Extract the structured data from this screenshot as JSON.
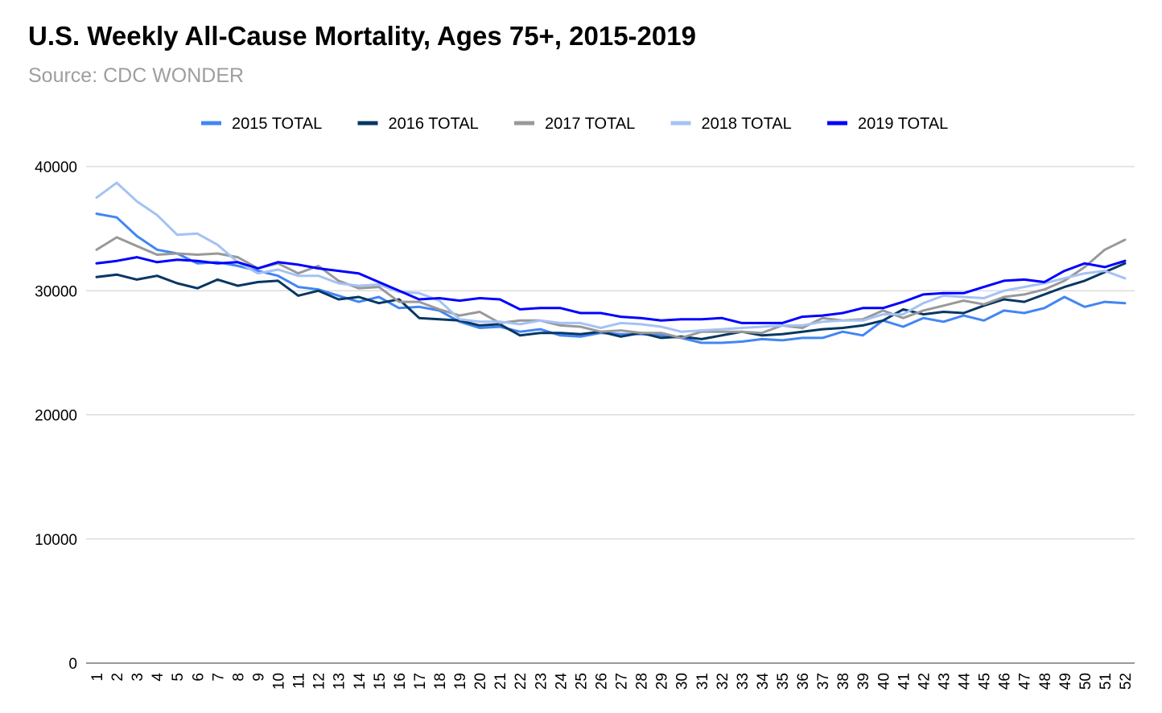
{
  "chart_data": {
    "type": "line",
    "title": "U.S. Weekly All-Cause Mortality, Ages 75+, 2015-2019",
    "subtitle": "Source: CDC WONDER",
    "xlabel": "",
    "ylabel": "",
    "ylim": [
      0,
      40000
    ],
    "yticks": [
      "0",
      "10000",
      "20000",
      "30000",
      "40000"
    ],
    "grid": true,
    "legend_position": "top",
    "x": [
      1,
      2,
      3,
      4,
      5,
      6,
      7,
      8,
      9,
      10,
      11,
      12,
      13,
      14,
      15,
      16,
      17,
      18,
      19,
      20,
      21,
      22,
      23,
      24,
      25,
      26,
      27,
      28,
      29,
      30,
      31,
      32,
      33,
      34,
      35,
      36,
      37,
      38,
      39,
      40,
      41,
      42,
      43,
      44,
      45,
      46,
      47,
      48,
      49,
      50,
      51,
      52
    ],
    "series": [
      {
        "name": "2015 TOTAL",
        "color": "#4285f4",
        "values": [
          36200,
          35900,
          34400,
          33300,
          33000,
          32200,
          32300,
          32000,
          31600,
          31200,
          30300,
          30100,
          29600,
          29100,
          29500,
          28600,
          28700,
          28400,
          27500,
          27000,
          27100,
          26700,
          26900,
          26400,
          26300,
          26600,
          26500,
          26500,
          26400,
          26200,
          25800,
          25800,
          25900,
          26100,
          26000,
          26200,
          26200,
          26700,
          26400,
          27600,
          27100,
          27800,
          27500,
          28000,
          27600,
          28400,
          28200,
          28600,
          29500,
          28700,
          29100,
          29000
        ]
      },
      {
        "name": "2016 TOTAL",
        "color": "#073763",
        "values": [
          31100,
          31300,
          30900,
          31200,
          30600,
          30200,
          30900,
          30400,
          30700,
          30800,
          29600,
          30000,
          29300,
          29500,
          29000,
          29300,
          27800,
          27700,
          27600,
          27200,
          27300,
          26400,
          26600,
          26600,
          26500,
          26700,
          26300,
          26600,
          26200,
          26300,
          26100,
          26400,
          26700,
          26400,
          26500,
          26700,
          26900,
          27000,
          27200,
          27600,
          28500,
          28100,
          28300,
          28200,
          28800,
          29300,
          29100,
          29700,
          30300,
          30800,
          31500,
          32200
        ]
      },
      {
        "name": "2017 TOTAL",
        "color": "#999999",
        "values": [
          33300,
          34300,
          33600,
          32900,
          33000,
          32900,
          33000,
          32700,
          31800,
          32200,
          31400,
          32000,
          30800,
          30200,
          30300,
          29100,
          29100,
          28500,
          28000,
          28300,
          27400,
          27600,
          27600,
          27200,
          27100,
          26700,
          26800,
          26600,
          26600,
          26200,
          26700,
          26700,
          26700,
          26600,
          27200,
          27000,
          27800,
          27600,
          27700,
          28400,
          27800,
          28400,
          28800,
          29200,
          28900,
          29500,
          29700,
          30100,
          30800,
          31900,
          33300,
          34100
        ]
      },
      {
        "name": "2018 TOTAL",
        "color": "#a4c2f4",
        "values": [
          37500,
          38700,
          37200,
          36100,
          34500,
          34600,
          33700,
          32300,
          31400,
          31700,
          31200,
          31200,
          30600,
          30400,
          30500,
          29900,
          29800,
          29200,
          27700,
          27500,
          27500,
          27300,
          27600,
          27400,
          27400,
          27000,
          27400,
          27300,
          27100,
          26700,
          26800,
          26900,
          27000,
          27100,
          27200,
          27200,
          27500,
          27600,
          27600,
          28100,
          28100,
          29000,
          29600,
          29500,
          29400,
          30000,
          30300,
          30600,
          31000,
          31400,
          31600,
          31000
        ]
      },
      {
        "name": "2019 TOTAL",
        "color": "#0000ff",
        "values": [
          32200,
          32400,
          32700,
          32300,
          32500,
          32400,
          32200,
          32300,
          31800,
          32300,
          32100,
          31800,
          31600,
          31400,
          30700,
          30000,
          29300,
          29400,
          29200,
          29400,
          29300,
          28500,
          28600,
          28600,
          28200,
          28200,
          27900,
          27800,
          27600,
          27700,
          27700,
          27800,
          27400,
          27400,
          27400,
          27900,
          28000,
          28200,
          28600,
          28600,
          29100,
          29700,
          29800,
          29800,
          30300,
          30800,
          30900,
          30700,
          31600,
          32200,
          31900,
          32400
        ]
      }
    ]
  }
}
